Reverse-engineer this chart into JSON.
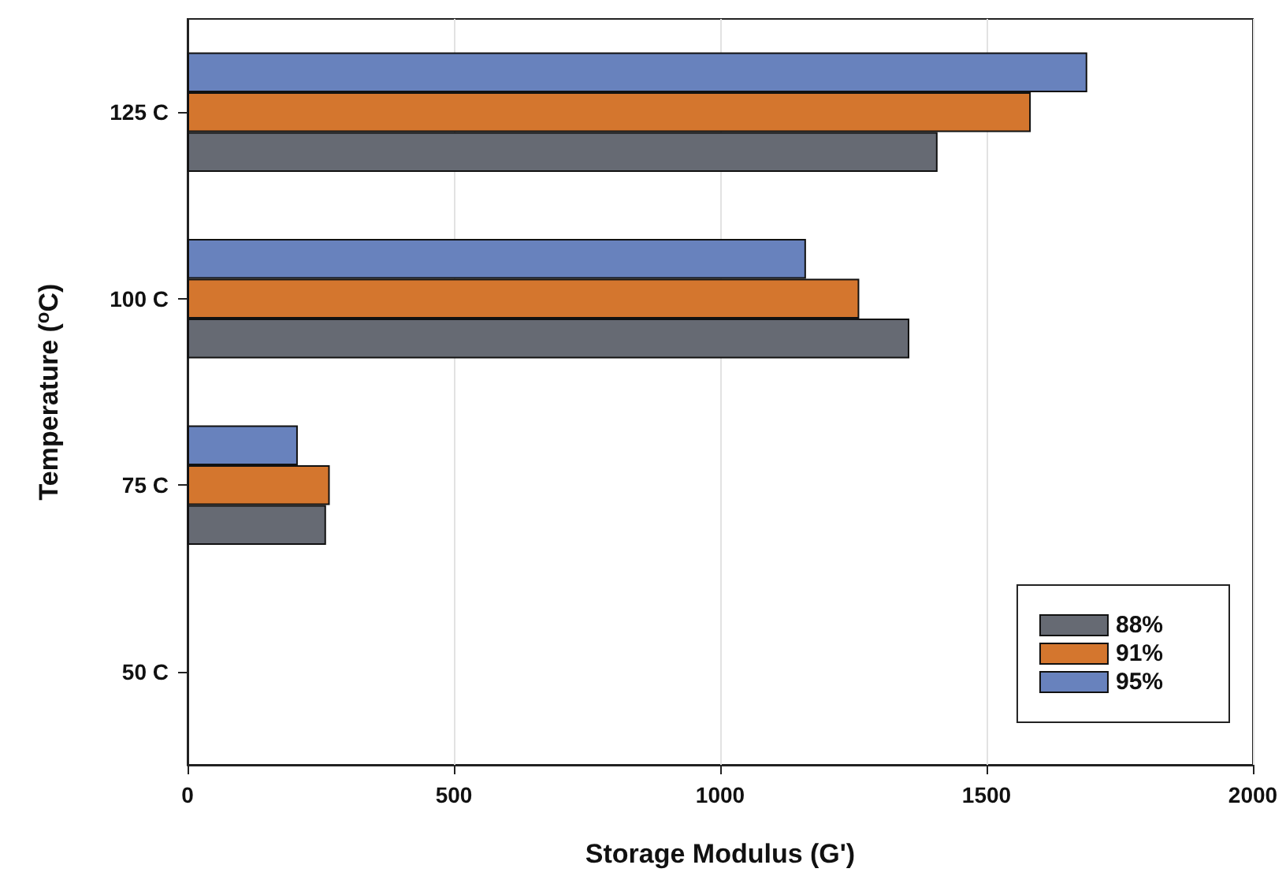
{
  "chart_data": {
    "type": "bar",
    "orientation": "horizontal",
    "xlabel": "Storage Modulus (G')",
    "ylabel": "Temperature ($^{o}$C)",
    "categories": [
      "125 C",
      "100 C",
      "75 C",
      "50 C"
    ],
    "series": [
      {
        "name": "88%",
        "color": "#666a73",
        "values": [
          1408,
          1355,
          260,
          null
        ]
      },
      {
        "name": "91%",
        "color": "#d4762e",
        "values": [
          1583,
          1261,
          267,
          null
        ]
      },
      {
        "name": "95%",
        "color": "#6882bd",
        "values": [
          1689,
          1161,
          207,
          null
        ]
      }
    ],
    "xlim": [
      0,
      2000
    ],
    "xticks": [
      0,
      500,
      1000,
      1500,
      2000
    ],
    "grid": "x",
    "legend": "bottom right"
  }
}
